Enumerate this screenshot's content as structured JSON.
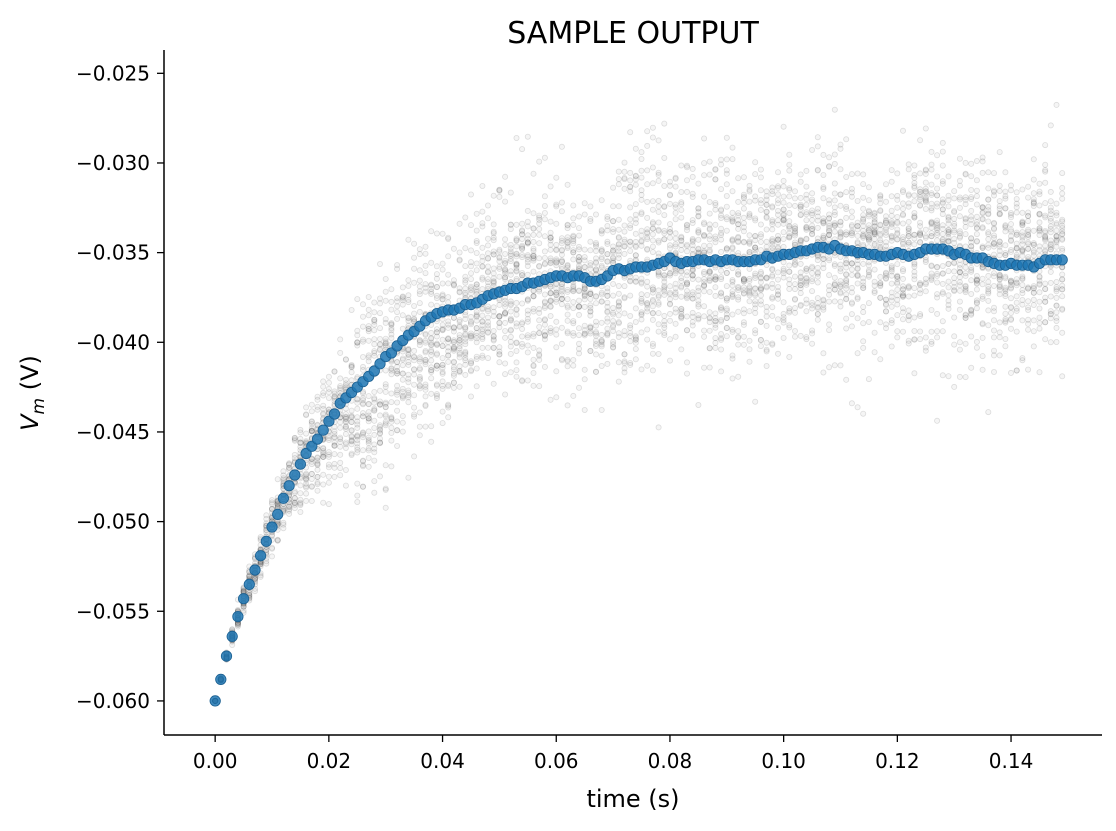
{
  "chart_data": {
    "type": "scatter",
    "title": "SAMPLE OUTPUT",
    "xlabel": "time (s)",
    "ylabel_main": "V",
    "ylabel_sub": "m",
    "ylabel_unit": " (V)",
    "xlim": [
      -0.009,
      0.156
    ],
    "ylim": [
      -0.0619,
      -0.0237
    ],
    "x_ticks": [
      0.0,
      0.02,
      0.04,
      0.06,
      0.08,
      0.1,
      0.12,
      0.14
    ],
    "x_tick_labels": [
      "0.00",
      "0.02",
      "0.04",
      "0.06",
      "0.08",
      "0.10",
      "0.12",
      "0.14"
    ],
    "y_ticks": [
      -0.06,
      -0.055,
      -0.05,
      -0.045,
      -0.04,
      -0.035,
      -0.03,
      -0.025
    ],
    "y_tick_labels": [
      "−0.060",
      "−0.055",
      "−0.050",
      "−0.045",
      "−0.040",
      "−0.035",
      "−0.030",
      "−0.025"
    ],
    "grid": false,
    "colors": {
      "mean": "#1f77b4",
      "samples": "#808080"
    },
    "samples_description_points": {
      "n_traces": 30,
      "noise_sd": 0.0025,
      "value_range": [
        -0.06,
        -0.0255
      ]
    },
    "series": [
      {
        "role": "mean",
        "x": [
          0.0,
          0.001,
          0.002,
          0.003,
          0.004,
          0.005,
          0.006,
          0.007,
          0.008,
          0.009,
          0.01,
          0.011,
          0.012,
          0.013,
          0.014,
          0.015,
          0.016,
          0.017,
          0.018,
          0.019,
          0.02,
          0.021,
          0.022,
          0.023,
          0.024,
          0.025,
          0.026,
          0.027,
          0.028,
          0.029,
          0.03,
          0.031,
          0.032,
          0.033,
          0.034,
          0.035,
          0.036,
          0.037,
          0.038,
          0.039,
          0.04,
          0.041,
          0.042,
          0.043,
          0.044,
          0.045,
          0.046,
          0.047,
          0.048,
          0.049,
          0.05,
          0.051,
          0.052,
          0.053,
          0.054,
          0.055,
          0.056,
          0.057,
          0.058,
          0.059,
          0.06,
          0.061,
          0.062,
          0.063,
          0.064,
          0.065,
          0.066,
          0.067,
          0.068,
          0.069,
          0.07,
          0.071,
          0.072,
          0.073,
          0.074,
          0.075,
          0.076,
          0.077,
          0.078,
          0.079,
          0.08,
          0.081,
          0.082,
          0.083,
          0.084,
          0.085,
          0.086,
          0.087,
          0.088,
          0.089,
          0.09,
          0.091,
          0.092,
          0.093,
          0.094,
          0.095,
          0.096,
          0.097,
          0.098,
          0.099,
          0.1,
          0.101,
          0.102,
          0.103,
          0.104,
          0.105,
          0.106,
          0.107,
          0.108,
          0.109,
          0.11,
          0.111,
          0.112,
          0.113,
          0.114,
          0.115,
          0.116,
          0.117,
          0.118,
          0.119,
          0.12,
          0.121,
          0.122,
          0.123,
          0.124,
          0.125,
          0.126,
          0.127,
          0.128,
          0.129,
          0.13,
          0.131,
          0.132,
          0.133,
          0.134,
          0.135,
          0.136,
          0.137,
          0.138,
          0.139,
          0.14,
          0.141,
          0.142,
          0.143,
          0.144,
          0.145,
          0.146,
          0.147,
          0.148,
          0.149
        ],
        "y": [
          -0.06,
          -0.0588,
          -0.0575,
          -0.0564,
          -0.0553,
          -0.0543,
          -0.0535,
          -0.0527,
          -0.0519,
          -0.0511,
          -0.0503,
          -0.0496,
          -0.0487,
          -0.048,
          -0.0474,
          -0.0468,
          -0.0462,
          -0.0458,
          -0.0454,
          -0.0449,
          -0.0444,
          -0.044,
          -0.0434,
          -0.0431,
          -0.0428,
          -0.0425,
          -0.0422,
          -0.0419,
          -0.0416,
          -0.0412,
          -0.0408,
          -0.0406,
          -0.0402,
          -0.0399,
          -0.0396,
          -0.0394,
          -0.0391,
          -0.0388,
          -0.0386,
          -0.0384,
          -0.0383,
          -0.0382,
          -0.0382,
          -0.0381,
          -0.0379,
          -0.0379,
          -0.0378,
          -0.0376,
          -0.0374,
          -0.0373,
          -0.0372,
          -0.0371,
          -0.037,
          -0.037,
          -0.0369,
          -0.0367,
          -0.0367,
          -0.0366,
          -0.0365,
          -0.0364,
          -0.0363,
          -0.0363,
          -0.0364,
          -0.0363,
          -0.0363,
          -0.0364,
          -0.0366,
          -0.0366,
          -0.0365,
          -0.0363,
          -0.036,
          -0.0359,
          -0.036,
          -0.0359,
          -0.0358,
          -0.0358,
          -0.0358,
          -0.0357,
          -0.0356,
          -0.0355,
          -0.0353,
          -0.0355,
          -0.0356,
          -0.0355,
          -0.0355,
          -0.0354,
          -0.0354,
          -0.0355,
          -0.0354,
          -0.0355,
          -0.0354,
          -0.0354,
          -0.0355,
          -0.0355,
          -0.0355,
          -0.0354,
          -0.0354,
          -0.0352,
          -0.0353,
          -0.0352,
          -0.0351,
          -0.0351,
          -0.035,
          -0.0349,
          -0.0349,
          -0.0348,
          -0.0347,
          -0.0347,
          -0.0348,
          -0.0346,
          -0.0348,
          -0.0349,
          -0.0349,
          -0.035,
          -0.035,
          -0.0351,
          -0.0351,
          -0.0352,
          -0.0352,
          -0.0351,
          -0.035,
          -0.0351,
          -0.0352,
          -0.0351,
          -0.035,
          -0.0348,
          -0.0348,
          -0.0348,
          -0.0348,
          -0.0349,
          -0.0351,
          -0.035,
          -0.0351,
          -0.0353,
          -0.0353,
          -0.0353,
          -0.0355,
          -0.0356,
          -0.0357,
          -0.0357,
          -0.0356,
          -0.0357,
          -0.0357,
          -0.0357,
          -0.0358,
          -0.0356,
          -0.0354,
          -0.0354,
          -0.0354,
          -0.0354
        ]
      }
    ]
  }
}
